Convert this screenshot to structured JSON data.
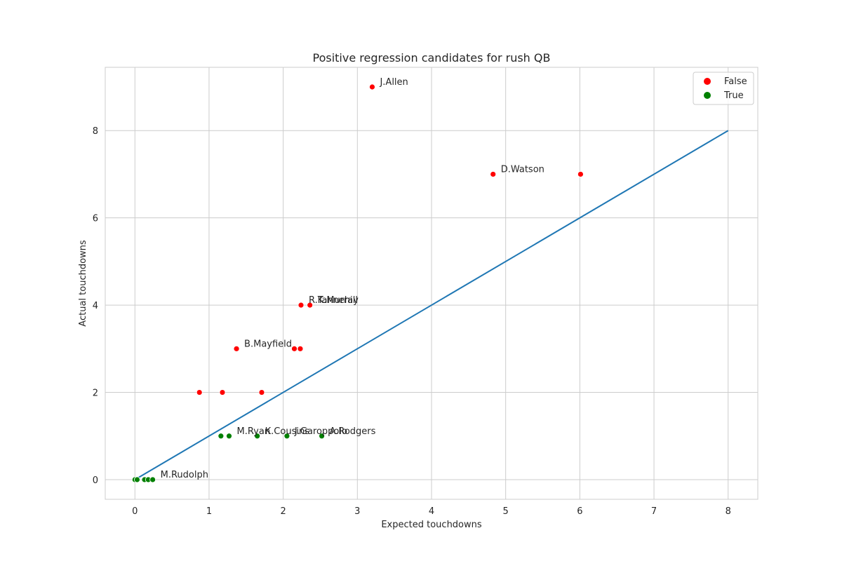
{
  "chart_data": {
    "type": "scatter",
    "title": "Positive regression candidates for rush QB",
    "xlabel": "Expected touchdowns",
    "ylabel": "Actual touchdowns",
    "xlim": [
      -0.4,
      8.4
    ],
    "ylim": [
      -0.45,
      9.45
    ],
    "x_ticks": [
      0,
      1,
      2,
      3,
      4,
      5,
      6,
      7,
      8
    ],
    "y_ticks": [
      0,
      2,
      4,
      6,
      8
    ],
    "grid": true,
    "legend_position": "top-right",
    "series": [
      {
        "name": "False",
        "color": "#ff0000",
        "points": [
          {
            "x": 3.2,
            "y": 9,
            "label": "J.Allen"
          },
          {
            "x": 4.83,
            "y": 7,
            "label": "D.Watson"
          },
          {
            "x": 6.01,
            "y": 7,
            "label": ""
          },
          {
            "x": 2.24,
            "y": 4,
            "label": "R.Tannehill"
          },
          {
            "x": 2.36,
            "y": 4,
            "label": "K.Murray"
          },
          {
            "x": 1.37,
            "y": 3,
            "label": "B.Mayfield"
          },
          {
            "x": 2.15,
            "y": 3,
            "label": ""
          },
          {
            "x": 2.23,
            "y": 3,
            "label": ""
          },
          {
            "x": 0.87,
            "y": 2,
            "label": ""
          },
          {
            "x": 1.18,
            "y": 2,
            "label": ""
          },
          {
            "x": 1.71,
            "y": 2,
            "label": ""
          }
        ]
      },
      {
        "name": "True",
        "color": "#008000",
        "points": [
          {
            "x": 1.16,
            "y": 1,
            "label": ""
          },
          {
            "x": 1.27,
            "y": 1,
            "label": "M.Ryan"
          },
          {
            "x": 1.65,
            "y": 1,
            "label": "K.Cousins"
          },
          {
            "x": 2.05,
            "y": 1,
            "label": "J.Garoppolo"
          },
          {
            "x": 2.52,
            "y": 1,
            "label": "A.Rodgers"
          },
          {
            "x": 0.0,
            "y": 0,
            "label": ""
          },
          {
            "x": 0.03,
            "y": 0,
            "label": ""
          },
          {
            "x": 0.13,
            "y": 0,
            "label": ""
          },
          {
            "x": 0.18,
            "y": 0,
            "label": ""
          },
          {
            "x": 0.24,
            "y": 0,
            "label": "M.Rudolph"
          }
        ]
      }
    ],
    "reference_line": {
      "from": [
        0,
        0
      ],
      "to": [
        8,
        8
      ],
      "color": "#1f77b4"
    }
  }
}
